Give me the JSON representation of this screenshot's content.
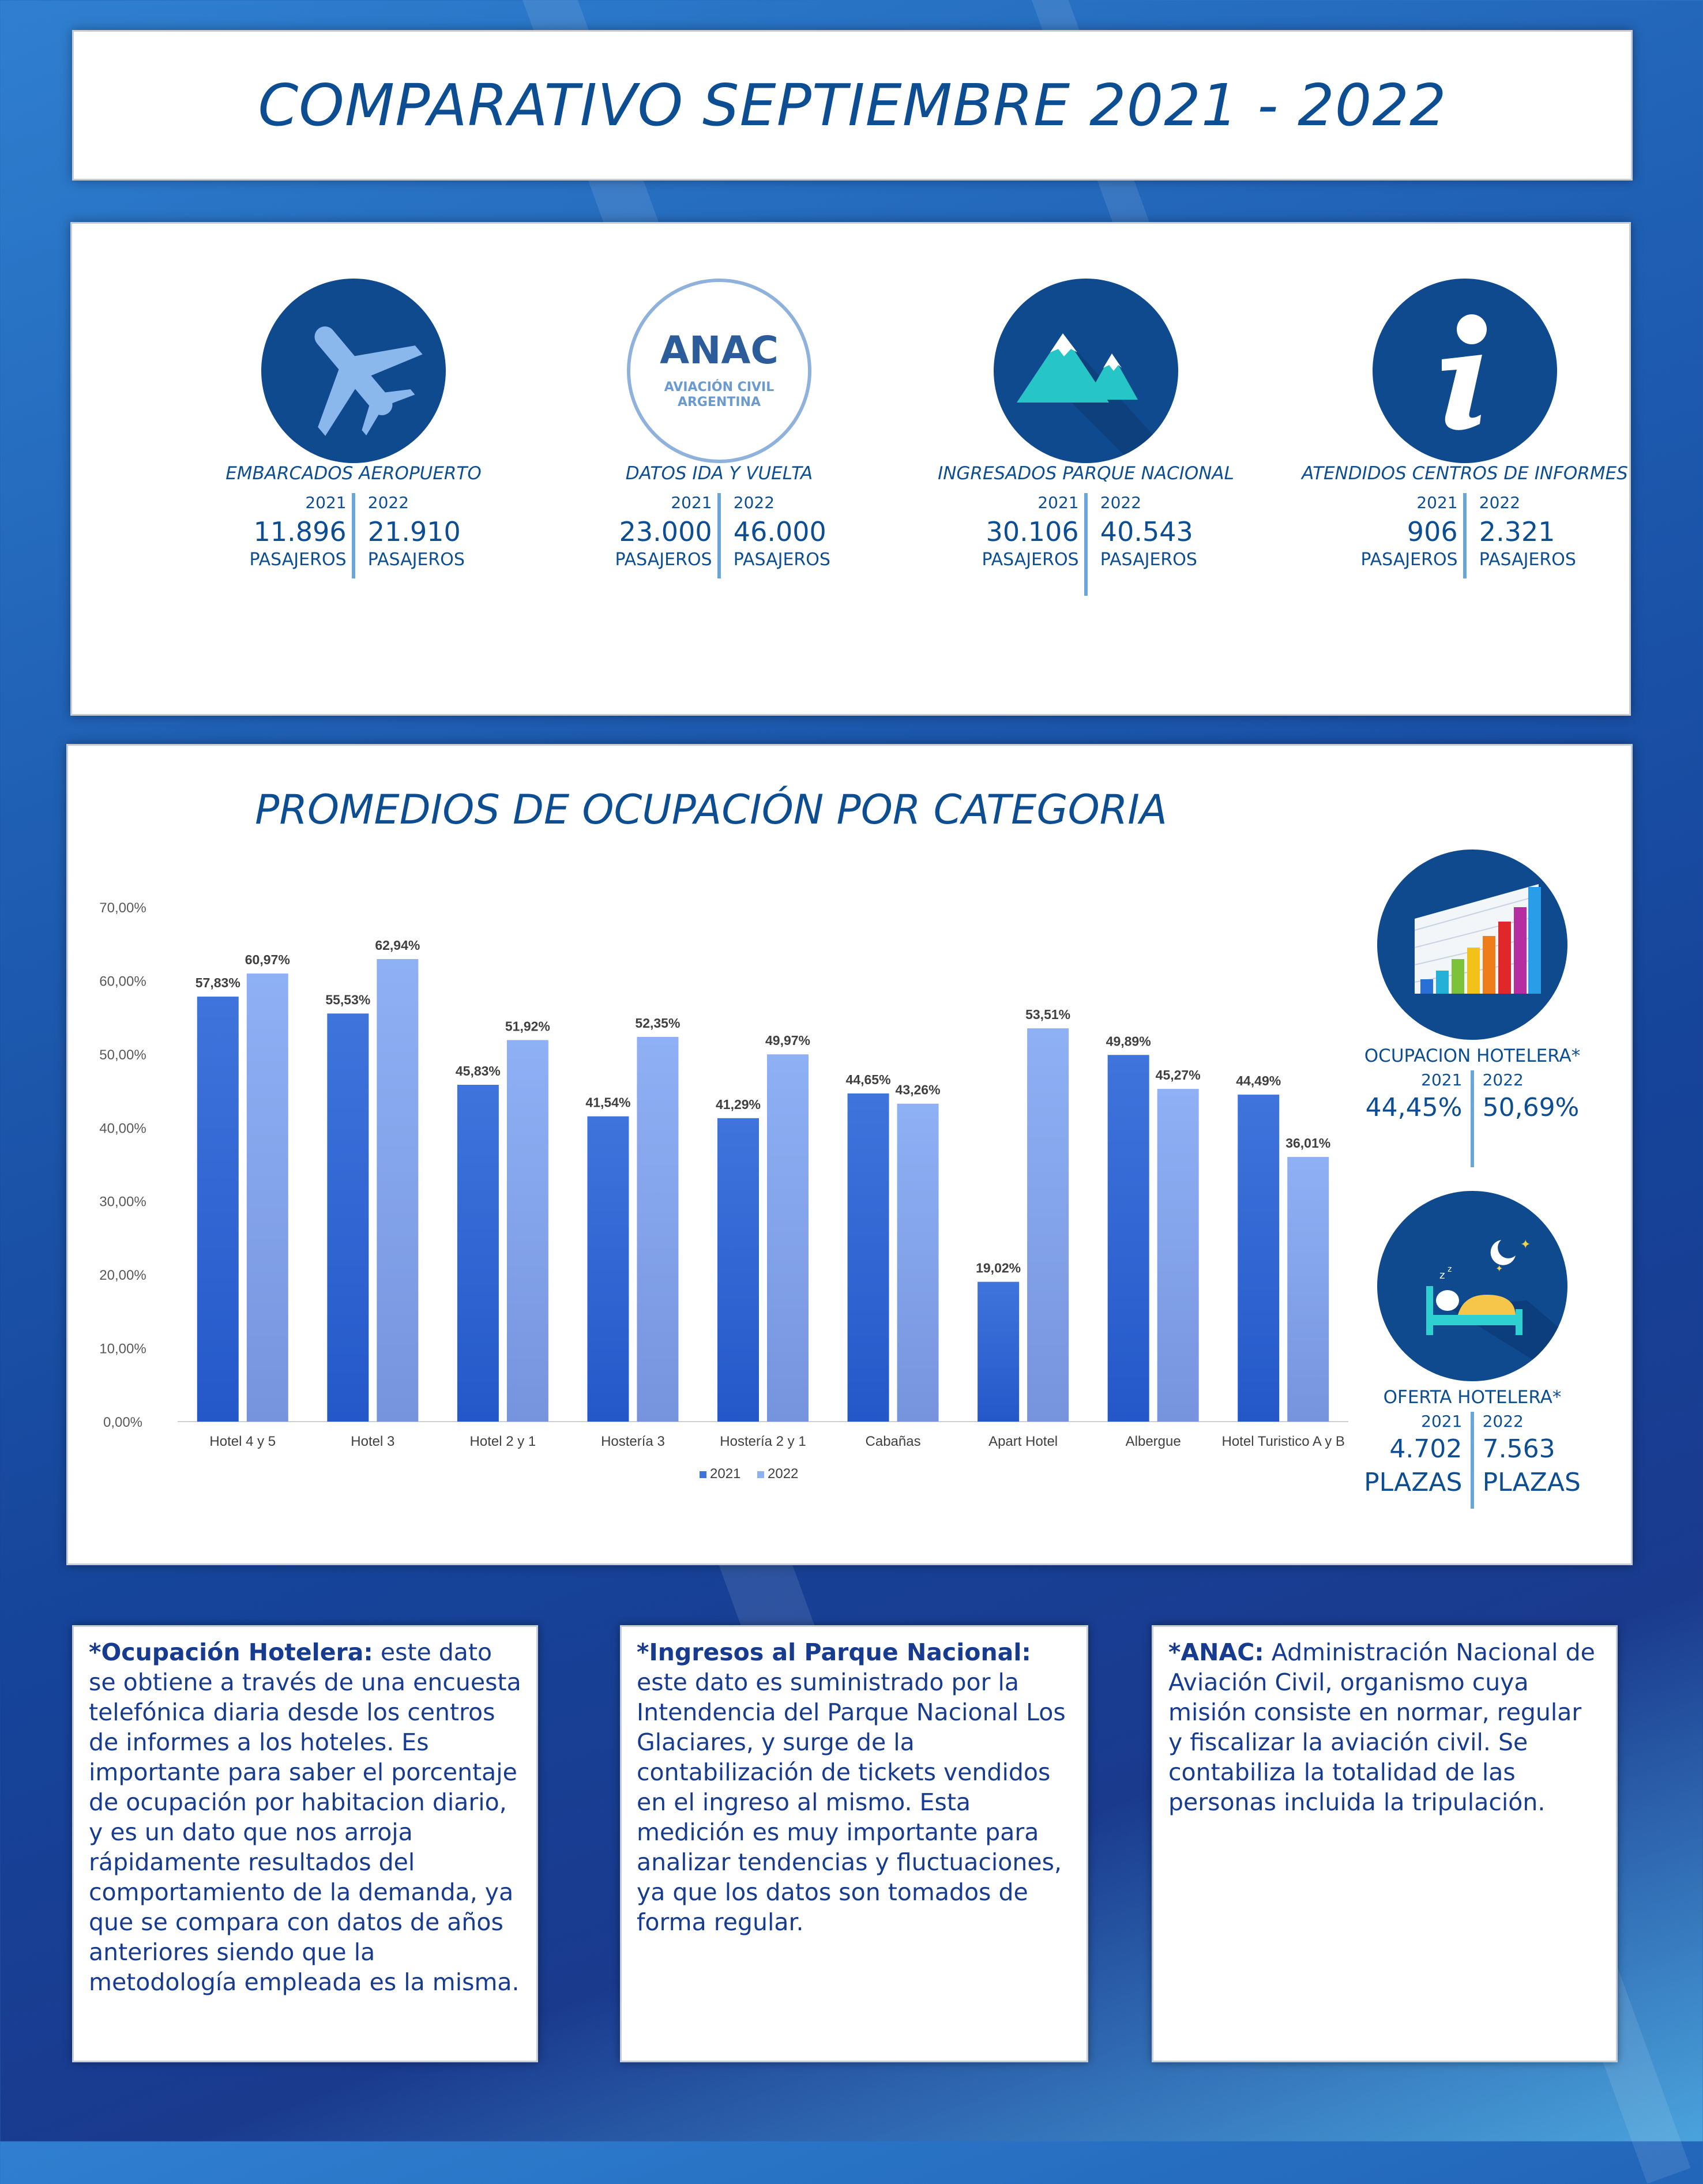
{
  "title": "COMPARATIVO SEPTIEMBRE 2021 - 2022",
  "stats": [
    {
      "icon": "airplane-icon",
      "label": "EMBARCADOS AEROPUERTO",
      "year_a": "2021",
      "year_b": "2022",
      "value_a": "11.896",
      "value_b": "21.910",
      "unit_a": "PASAJEROS",
      "unit_b": "PASAJEROS"
    },
    {
      "icon": "anac-logo",
      "label": "DATOS IDA Y VUELTA",
      "year_a": "2021",
      "year_b": "2022",
      "value_a": "23.000",
      "value_b": "46.000",
      "unit_a": "PASAJEROS",
      "unit_b": "PASAJEROS"
    },
    {
      "icon": "mountains-icon",
      "label": "INGRESADOS PARQUE NACIONAL",
      "year_a": "2021",
      "year_b": "2022",
      "value_a": "30.106",
      "value_b": "40.543",
      "unit_a": "PASAJEROS",
      "unit_b": "PASAJEROS"
    },
    {
      "icon": "info-icon",
      "label": "ATENDIDOS CENTROS DE INFORMES",
      "year_a": "2021",
      "year_b": "2022",
      "value_a": "906",
      "value_b": "2.321",
      "unit_a": "PASAJEROS",
      "unit_b": "PASAJEROS"
    }
  ],
  "anac_logo": {
    "big": "ANAC",
    "line1": "AVIACIÓN CIVIL",
    "line2": "ARGENTINA"
  },
  "chart_title": "PROMEDIOS DE OCUPACIÓN POR CATEGORIA",
  "chart_data": {
    "type": "bar",
    "title": "",
    "xlabel": "",
    "ylabel": "",
    "categories": [
      "Hotel 4 y 5",
      "Hotel 3",
      "Hotel 2 y 1",
      "Hostería 3",
      "Hostería 2 y 1",
      "Cabañas",
      "Apart Hotel",
      "Albergue",
      "Hotel Turistico A y B"
    ],
    "series": [
      {
        "name": "2021",
        "values": [
          57.83,
          55.53,
          45.83,
          41.54,
          41.29,
          44.65,
          19.02,
          49.89,
          44.49
        ],
        "labels": [
          "57,83%",
          "55,53%",
          "45,83%",
          "41,54%",
          "41,29%",
          "44,65%",
          "19,02%",
          "49,89%",
          "44,49%"
        ],
        "color": "#3f74dc"
      },
      {
        "name": "2022",
        "values": [
          60.97,
          62.94,
          51.92,
          52.35,
          49.97,
          43.26,
          53.51,
          45.27,
          36.01
        ],
        "labels": [
          "60,97%",
          "62,94%",
          "51,92%",
          "52,35%",
          "49,97%",
          "43,26%",
          "53,51%",
          "45,27%",
          "36,01%"
        ],
        "color": "#8fb0f5"
      }
    ],
    "ylim": [
      0,
      70
    ],
    "yticks": [
      0,
      10,
      20,
      30,
      40,
      50,
      60,
      70
    ],
    "ytick_labels": [
      "0,00%",
      "10,00%",
      "20,00%",
      "30,00%",
      "40,00%",
      "50,00%",
      "60,00%",
      "70,00%"
    ],
    "grid": false,
    "legend": "bottom-center"
  },
  "side_stats": [
    {
      "icon": "bar-chart-icon",
      "label": "OCUPACION HOTELERA*",
      "year_a": "2021",
      "year_b": "2022",
      "value_a": "44,45%",
      "value_b": "50,69%",
      "unit_a": "",
      "unit_b": ""
    },
    {
      "icon": "bed-icon",
      "label": "OFERTA HOTELERA*",
      "year_a": "2021",
      "year_b": "2022",
      "value_a": "4.702",
      "value_b": "7.563",
      "unit_a": "PLAZAS",
      "unit_b": "PLAZAS"
    }
  ],
  "notes": [
    {
      "head": "*Ocupación Hotelera:",
      "body": " este dato se obtiene a través de una encuesta telefónica diaria desde los centros de informes a los hoteles. Es importante para saber el porcentaje de ocupación por habitacion diario, y es un dato que nos arroja rápidamente resultados del comportamiento de la demanda, ya que se compara con datos de años anteriores siendo que la metodología empleada es la misma."
    },
    {
      "head": "*Ingresos al Parque Nacional:",
      "body": " este dato es suministrado por la Intendencia del Parque Nacional Los Glaciares, y surge de la contabilización de tickets vendidos en el ingreso al mismo. Esta medición es muy importante para analizar tendencias y fluctuaciones, ya que los datos son tomados de forma regular."
    },
    {
      "head": "*ANAC:",
      "body": " Administración Nacional de Aviación Civil, organismo cuya misión consiste en normar, regular y fiscalizar la aviación civil. Se contabiliza la totalidad de las personas incluida la tripulación."
    }
  ]
}
